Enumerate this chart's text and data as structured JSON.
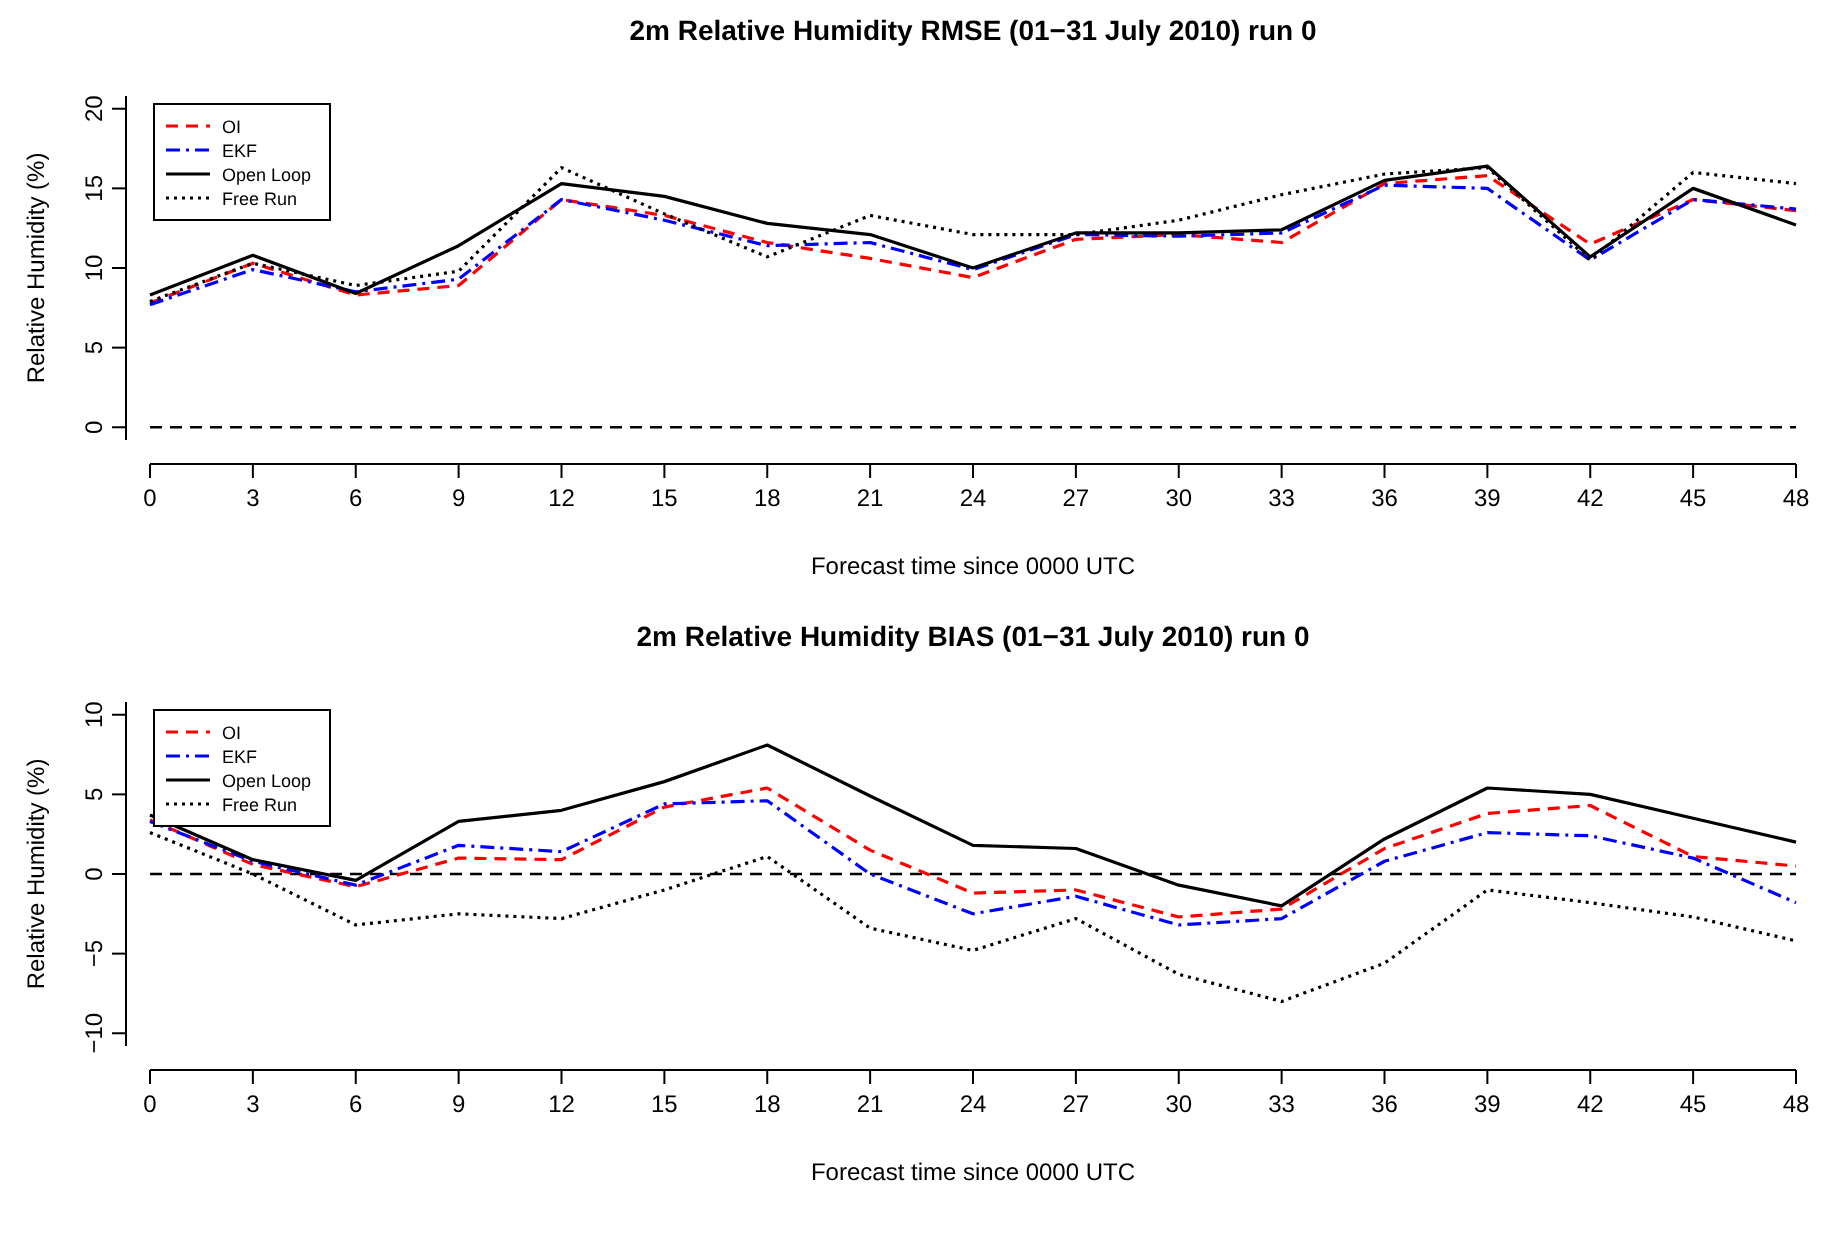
{
  "chart_data": [
    {
      "type": "line",
      "title": "2m Relative Humidity RMSE (01−31 July 2010) run 0",
      "xlabel": "Forecast time since 0000 UTC",
      "ylabel": "Relative Humidity (%)",
      "x": [
        0,
        3,
        6,
        9,
        12,
        15,
        18,
        21,
        24,
        27,
        30,
        33,
        36,
        39,
        42,
        45,
        48
      ],
      "xlim": [
        0,
        48
      ],
      "xticks": [
        0,
        3,
        6,
        9,
        12,
        15,
        18,
        21,
        24,
        27,
        30,
        33,
        36,
        39,
        42,
        45,
        48
      ],
      "ylim": [
        -0.8,
        20.8
      ],
      "yticks": [
        0,
        5,
        10,
        15,
        20
      ],
      "legend": "top left",
      "grid": false,
      "ref_lines": [
        {
          "axis": "y",
          "value": 0,
          "color": "#000000",
          "line_style": "dashed"
        }
      ],
      "series": [
        {
          "name": "OI",
          "color": "#ff0000",
          "line_style": "dashed",
          "values": [
            7.8,
            10.3,
            8.3,
            8.9,
            14.3,
            13.3,
            11.6,
            10.6,
            9.4,
            11.8,
            12.1,
            11.6,
            15.3,
            15.8,
            11.5,
            14.3,
            13.6
          ]
        },
        {
          "name": "EKF",
          "color": "#0000ff",
          "line_style": "dashdot",
          "values": [
            7.7,
            9.9,
            8.5,
            9.3,
            14.3,
            13.0,
            11.4,
            11.6,
            9.9,
            12.1,
            12.0,
            12.2,
            15.2,
            15.0,
            10.5,
            14.3,
            13.7
          ]
        },
        {
          "name": "Open Loop",
          "color": "#000000",
          "line_style": "solid",
          "values": [
            8.3,
            10.8,
            8.4,
            11.4,
            15.3,
            14.5,
            12.8,
            12.1,
            10.0,
            12.2,
            12.2,
            12.4,
            15.5,
            16.4,
            10.7,
            15.0,
            12.7
          ]
        },
        {
          "name": "Free Run",
          "color": "#000000",
          "line_style": "dotted",
          "values": [
            7.9,
            10.3,
            8.9,
            9.8,
            16.3,
            13.4,
            10.7,
            13.3,
            12.1,
            12.1,
            13.0,
            14.6,
            15.9,
            16.3,
            10.5,
            16.0,
            15.3
          ]
        }
      ]
    },
    {
      "type": "line",
      "title": "2m Relative Humidity BIAS (01−31 July 2010) run 0",
      "xlabel": "Forecast time since 0000 UTC",
      "ylabel": "Relative Humidity (%)",
      "x": [
        0,
        3,
        6,
        9,
        12,
        15,
        18,
        21,
        24,
        27,
        30,
        33,
        36,
        39,
        42,
        45,
        48
      ],
      "xlim": [
        0,
        48
      ],
      "xticks": [
        0,
        3,
        6,
        9,
        12,
        15,
        18,
        21,
        24,
        27,
        30,
        33,
        36,
        39,
        42,
        45,
        48
      ],
      "ylim": [
        -10.8,
        10.8
      ],
      "yticks": [
        -10,
        -5,
        0,
        5,
        10
      ],
      "legend": "top left",
      "grid": false,
      "ref_lines": [
        {
          "axis": "y",
          "value": 0,
          "color": "#000000",
          "line_style": "dashed"
        }
      ],
      "series": [
        {
          "name": "OI",
          "color": "#ff0000",
          "line_style": "dashed",
          "values": [
            3.4,
            0.6,
            -0.8,
            1.0,
            0.9,
            4.2,
            5.4,
            1.5,
            -1.2,
            -1.0,
            -2.7,
            -2.2,
            1.6,
            3.8,
            4.3,
            1.1,
            0.5
          ]
        },
        {
          "name": "EKF",
          "color": "#0000ff",
          "line_style": "dashdot",
          "values": [
            3.3,
            0.8,
            -0.7,
            1.8,
            1.4,
            4.4,
            4.6,
            0.0,
            -2.5,
            -1.4,
            -3.2,
            -2.8,
            0.8,
            2.6,
            2.4,
            1.0,
            -1.8
          ]
        },
        {
          "name": "Open Loop",
          "color": "#000000",
          "line_style": "solid",
          "values": [
            3.7,
            0.9,
            -0.4,
            3.3,
            4.0,
            5.8,
            8.1,
            4.9,
            1.8,
            1.6,
            -0.7,
            -2.0,
            2.2,
            5.4,
            5.0,
            3.5,
            2.0
          ]
        },
        {
          "name": "Free Run",
          "color": "#000000",
          "line_style": "dotted",
          "values": [
            2.6,
            0.0,
            -3.2,
            -2.5,
            -2.8,
            -1.0,
            1.1,
            -3.4,
            -4.8,
            -2.8,
            -6.3,
            -8.0,
            -5.6,
            -1.0,
            -1.8,
            -2.7,
            -4.2
          ]
        }
      ]
    }
  ]
}
